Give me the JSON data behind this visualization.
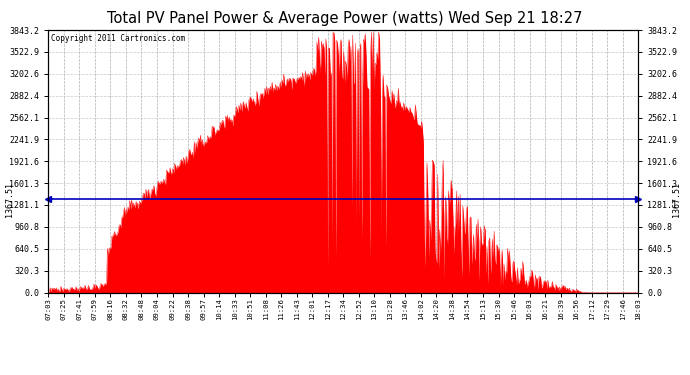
{
  "title": "Total PV Panel Power & Average Power (watts) Wed Sep 21 18:27",
  "copyright": "Copyright 2011 Cartronics.com",
  "average_power": 1367.51,
  "y_max": 3843.2,
  "y_ticks": [
    0.0,
    320.3,
    640.5,
    960.8,
    1281.1,
    1601.3,
    1921.6,
    2241.9,
    2562.1,
    2882.4,
    3202.6,
    3522.9,
    3843.2
  ],
  "fill_color": "#FF0000",
  "line_color": "#FF0000",
  "avg_line_color": "#0000BB",
  "background_color": "#FFFFFF",
  "grid_color": "#BBBBBB",
  "title_fontsize": 11,
  "x_tick_labels": [
    "07:03",
    "07:25",
    "07:41",
    "07:59",
    "08:16",
    "08:32",
    "08:48",
    "09:04",
    "09:22",
    "09:38",
    "09:57",
    "10:14",
    "10:33",
    "10:51",
    "11:08",
    "11:26",
    "11:43",
    "12:01",
    "12:17",
    "12:34",
    "12:52",
    "13:10",
    "13:28",
    "13:46",
    "14:02",
    "14:20",
    "14:38",
    "14:54",
    "15:13",
    "15:30",
    "15:46",
    "16:03",
    "16:21",
    "16:39",
    "16:56",
    "17:12",
    "17:29",
    "17:46",
    "18:03"
  ],
  "num_points": 660,
  "avg_label": "1367.51"
}
